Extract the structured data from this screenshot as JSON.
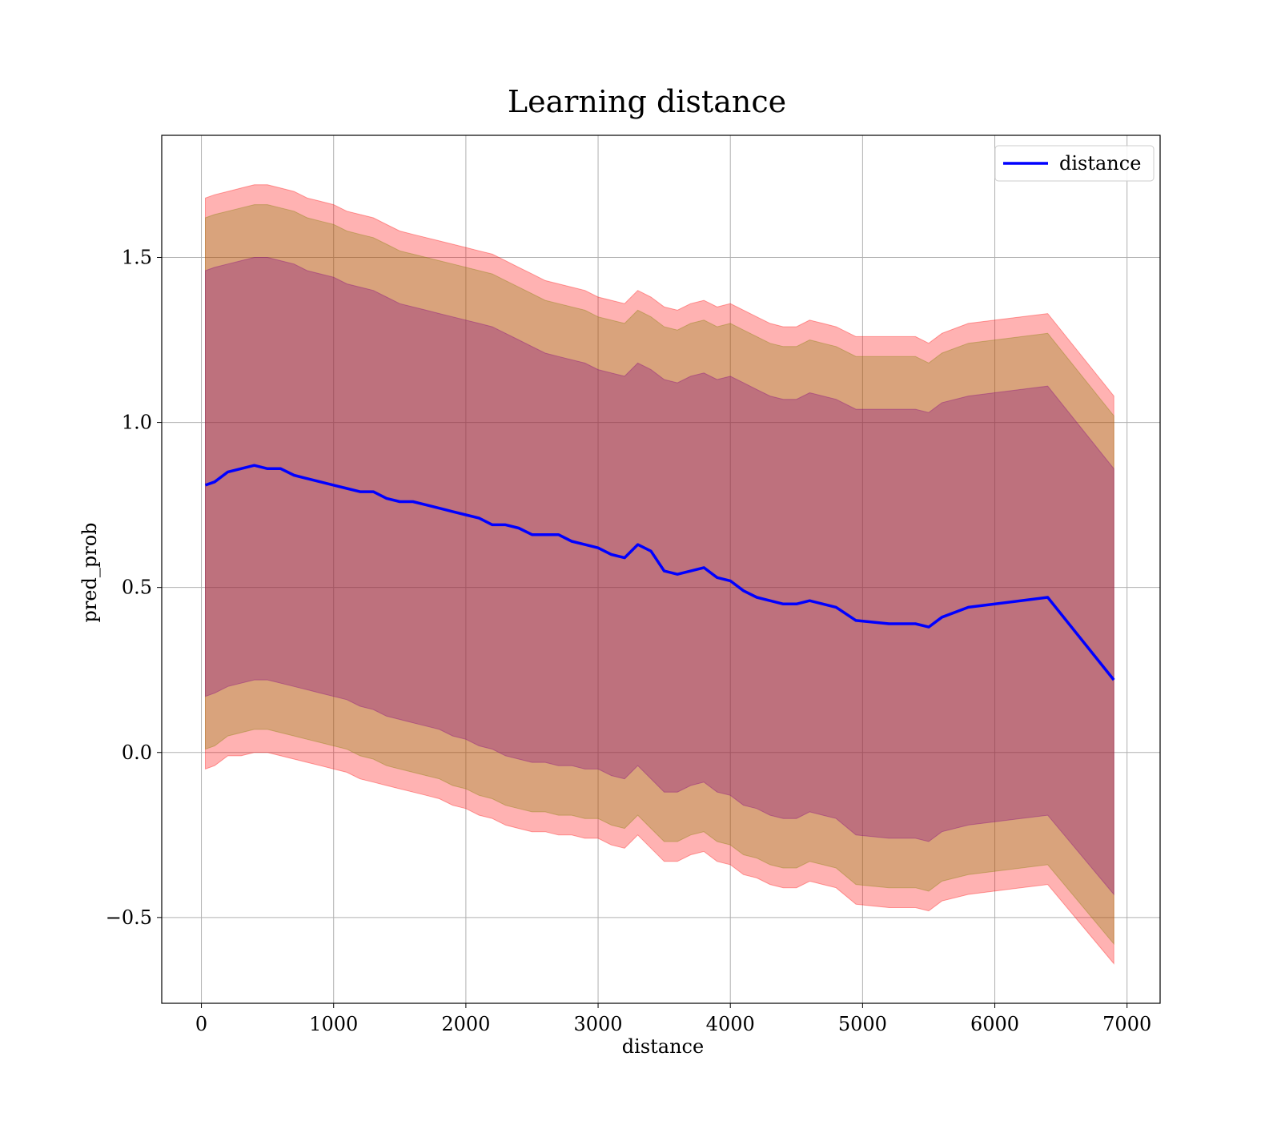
{
  "chart_data": {
    "type": "line",
    "title": "Learning distance",
    "xlabel": "distance",
    "ylabel": "pred_prob",
    "xlim": [
      -300,
      7250
    ],
    "ylim": [
      -0.76,
      1.87
    ],
    "xticks": [
      0,
      1000,
      2000,
      3000,
      4000,
      5000,
      6000,
      7000
    ],
    "xtick_labels": [
      "0",
      "1000",
      "2000",
      "3000",
      "4000",
      "5000",
      "6000",
      "7000"
    ],
    "yticks": [
      -0.5,
      0.0,
      0.5,
      1.0,
      1.5
    ],
    "ytick_labels": [
      "−0.5",
      "0.0",
      "0.5",
      "1.0",
      "1.5"
    ],
    "grid": true,
    "legend": {
      "position": "top-right",
      "entries": [
        "distance"
      ]
    },
    "colors": {
      "line": "#0000ff",
      "band_outer": "#ff0000",
      "band_middle": "#808000",
      "band_inner": "#800080",
      "grid": "#b0b0b0"
    },
    "x": [
      30,
      100,
      200,
      300,
      400,
      500,
      600,
      700,
      800,
      900,
      1000,
      1100,
      1200,
      1300,
      1400,
      1500,
      1600,
      1700,
      1800,
      1900,
      2000,
      2100,
      2200,
      2300,
      2400,
      2500,
      2600,
      2700,
      2800,
      2900,
      3000,
      3100,
      3200,
      3300,
      3400,
      3500,
      3600,
      3700,
      3800,
      3900,
      4000,
      4100,
      4200,
      4300,
      4400,
      4500,
      4600,
      4700,
      4800,
      4950,
      5200,
      5400,
      5500,
      5600,
      5800,
      6400,
      6900
    ],
    "series": [
      {
        "name": "distance",
        "values": [
          0.81,
          0.82,
          0.85,
          0.86,
          0.87,
          0.86,
          0.86,
          0.84,
          0.83,
          0.82,
          0.81,
          0.8,
          0.79,
          0.79,
          0.77,
          0.76,
          0.76,
          0.75,
          0.74,
          0.73,
          0.72,
          0.71,
          0.69,
          0.69,
          0.68,
          0.66,
          0.66,
          0.66,
          0.64,
          0.63,
          0.62,
          0.6,
          0.59,
          0.63,
          0.61,
          0.55,
          0.54,
          0.55,
          0.56,
          0.53,
          0.52,
          0.49,
          0.47,
          0.46,
          0.45,
          0.45,
          0.46,
          0.45,
          0.44,
          0.4,
          0.39,
          0.39,
          0.38,
          0.41,
          0.44,
          0.47,
          0.22
        ]
      }
    ],
    "bands": [
      {
        "level": "outer",
        "lower": [
          -0.05,
          -0.04,
          -0.01,
          -0.01,
          0.0,
          0.0,
          -0.01,
          -0.02,
          -0.03,
          -0.04,
          -0.05,
          -0.06,
          -0.08,
          -0.09,
          -0.1,
          -0.11,
          -0.12,
          -0.13,
          -0.14,
          -0.16,
          -0.17,
          -0.19,
          -0.2,
          -0.22,
          -0.23,
          -0.24,
          -0.24,
          -0.25,
          -0.25,
          -0.26,
          -0.26,
          -0.28,
          -0.29,
          -0.25,
          -0.29,
          -0.33,
          -0.33,
          -0.31,
          -0.3,
          -0.33,
          -0.34,
          -0.37,
          -0.38,
          -0.4,
          -0.41,
          -0.41,
          -0.39,
          -0.4,
          -0.41,
          -0.46,
          -0.47,
          -0.47,
          -0.48,
          -0.45,
          -0.43,
          -0.4,
          -0.64
        ],
        "upper": [
          1.68,
          1.69,
          1.7,
          1.71,
          1.72,
          1.72,
          1.71,
          1.7,
          1.68,
          1.67,
          1.66,
          1.64,
          1.63,
          1.62,
          1.6,
          1.58,
          1.57,
          1.56,
          1.55,
          1.54,
          1.53,
          1.52,
          1.51,
          1.49,
          1.47,
          1.45,
          1.43,
          1.42,
          1.41,
          1.4,
          1.38,
          1.37,
          1.36,
          1.4,
          1.38,
          1.35,
          1.34,
          1.36,
          1.37,
          1.35,
          1.36,
          1.34,
          1.32,
          1.3,
          1.29,
          1.29,
          1.31,
          1.3,
          1.29,
          1.26,
          1.26,
          1.26,
          1.24,
          1.27,
          1.3,
          1.33,
          1.08
        ]
      },
      {
        "level": "middle",
        "lower": [
          0.01,
          0.02,
          0.05,
          0.06,
          0.07,
          0.07,
          0.06,
          0.05,
          0.04,
          0.03,
          0.02,
          0.01,
          -0.01,
          -0.02,
          -0.04,
          -0.05,
          -0.06,
          -0.07,
          -0.08,
          -0.1,
          -0.11,
          -0.13,
          -0.14,
          -0.16,
          -0.17,
          -0.18,
          -0.18,
          -0.19,
          -0.19,
          -0.2,
          -0.2,
          -0.22,
          -0.23,
          -0.19,
          -0.23,
          -0.27,
          -0.27,
          -0.25,
          -0.24,
          -0.27,
          -0.28,
          -0.31,
          -0.32,
          -0.34,
          -0.35,
          -0.35,
          -0.33,
          -0.34,
          -0.35,
          -0.4,
          -0.41,
          -0.41,
          -0.42,
          -0.39,
          -0.37,
          -0.34,
          -0.58
        ],
        "upper": [
          1.62,
          1.63,
          1.64,
          1.65,
          1.66,
          1.66,
          1.65,
          1.64,
          1.62,
          1.61,
          1.6,
          1.58,
          1.57,
          1.56,
          1.54,
          1.52,
          1.51,
          1.5,
          1.49,
          1.48,
          1.47,
          1.46,
          1.45,
          1.43,
          1.41,
          1.39,
          1.37,
          1.36,
          1.35,
          1.34,
          1.32,
          1.31,
          1.3,
          1.34,
          1.32,
          1.29,
          1.28,
          1.3,
          1.31,
          1.29,
          1.3,
          1.28,
          1.26,
          1.24,
          1.23,
          1.23,
          1.25,
          1.24,
          1.23,
          1.2,
          1.2,
          1.2,
          1.18,
          1.21,
          1.24,
          1.27,
          1.02
        ]
      },
      {
        "level": "inner",
        "lower": [
          0.17,
          0.18,
          0.2,
          0.21,
          0.22,
          0.22,
          0.21,
          0.2,
          0.19,
          0.18,
          0.17,
          0.16,
          0.14,
          0.13,
          0.11,
          0.1,
          0.09,
          0.08,
          0.07,
          0.05,
          0.04,
          0.02,
          0.01,
          -0.01,
          -0.02,
          -0.03,
          -0.03,
          -0.04,
          -0.04,
          -0.05,
          -0.05,
          -0.07,
          -0.08,
          -0.04,
          -0.08,
          -0.12,
          -0.12,
          -0.1,
          -0.09,
          -0.12,
          -0.13,
          -0.16,
          -0.17,
          -0.19,
          -0.2,
          -0.2,
          -0.18,
          -0.19,
          -0.2,
          -0.25,
          -0.26,
          -0.26,
          -0.27,
          -0.24,
          -0.22,
          -0.19,
          -0.43
        ],
        "upper": [
          1.46,
          1.47,
          1.48,
          1.49,
          1.5,
          1.5,
          1.49,
          1.48,
          1.46,
          1.45,
          1.44,
          1.42,
          1.41,
          1.4,
          1.38,
          1.36,
          1.35,
          1.34,
          1.33,
          1.32,
          1.31,
          1.3,
          1.29,
          1.27,
          1.25,
          1.23,
          1.21,
          1.2,
          1.19,
          1.18,
          1.16,
          1.15,
          1.14,
          1.18,
          1.16,
          1.13,
          1.12,
          1.14,
          1.15,
          1.13,
          1.14,
          1.12,
          1.1,
          1.08,
          1.07,
          1.07,
          1.09,
          1.08,
          1.07,
          1.04,
          1.04,
          1.04,
          1.03,
          1.06,
          1.08,
          1.11,
          0.86
        ]
      }
    ]
  }
}
